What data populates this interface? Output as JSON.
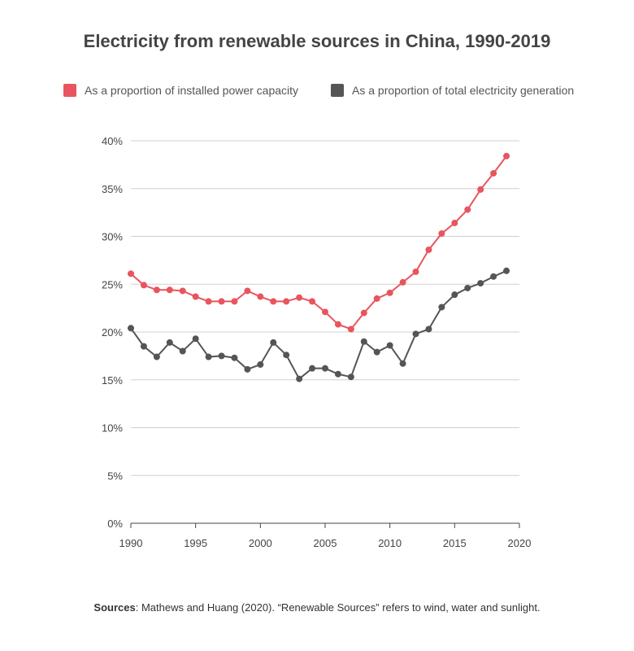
{
  "chart_data": {
    "type": "line",
    "title": "Electricity from renewable sources in China, 1990-2019",
    "xlabel": "",
    "ylabel": "",
    "xlim": [
      1990,
      2020
    ],
    "ylim": [
      0,
      40
    ],
    "x_ticks": [
      "1990",
      "1995",
      "2000",
      "2005",
      "2010",
      "2015",
      "2020"
    ],
    "y_ticks": [
      "0%",
      "5%",
      "10%",
      "15%",
      "20%",
      "25%",
      "30%",
      "35%",
      "40%"
    ],
    "grid": "horizontal",
    "legend": "top",
    "x": [
      1990,
      1991,
      1992,
      1993,
      1994,
      1995,
      1996,
      1997,
      1998,
      1999,
      2000,
      2001,
      2002,
      2003,
      2004,
      2005,
      2006,
      2007,
      2008,
      2009,
      2010,
      2011,
      2012,
      2013,
      2014,
      2015,
      2016,
      2017,
      2018,
      2019
    ],
    "series": [
      {
        "name": "As a proportion of installed power capacity",
        "color": "#e8555e",
        "values": [
          26.1,
          24.9,
          24.4,
          24.4,
          24.3,
          23.7,
          23.2,
          23.2,
          23.2,
          24.3,
          23.7,
          23.2,
          23.2,
          23.6,
          23.2,
          22.1,
          20.8,
          20.3,
          22.0,
          23.5,
          24.1,
          25.2,
          26.3,
          28.6,
          30.3,
          31.4,
          32.8,
          34.9,
          36.6,
          38.4
        ]
      },
      {
        "name": "As a proportion of total electricity generation",
        "color": "#555555",
        "values": [
          20.4,
          18.5,
          17.4,
          18.9,
          18.0,
          19.3,
          17.4,
          17.5,
          17.3,
          16.1,
          16.6,
          18.9,
          17.6,
          15.1,
          16.2,
          16.2,
          15.6,
          15.3,
          19.0,
          17.9,
          18.6,
          16.7,
          19.8,
          20.3,
          22.6,
          23.9,
          24.6,
          25.1,
          25.8,
          26.4
        ]
      }
    ]
  },
  "source": {
    "label": "Sources",
    "text": ":  Mathews and Huang (2020). “Renewable Sources” refers to wind, water and sunlight."
  }
}
